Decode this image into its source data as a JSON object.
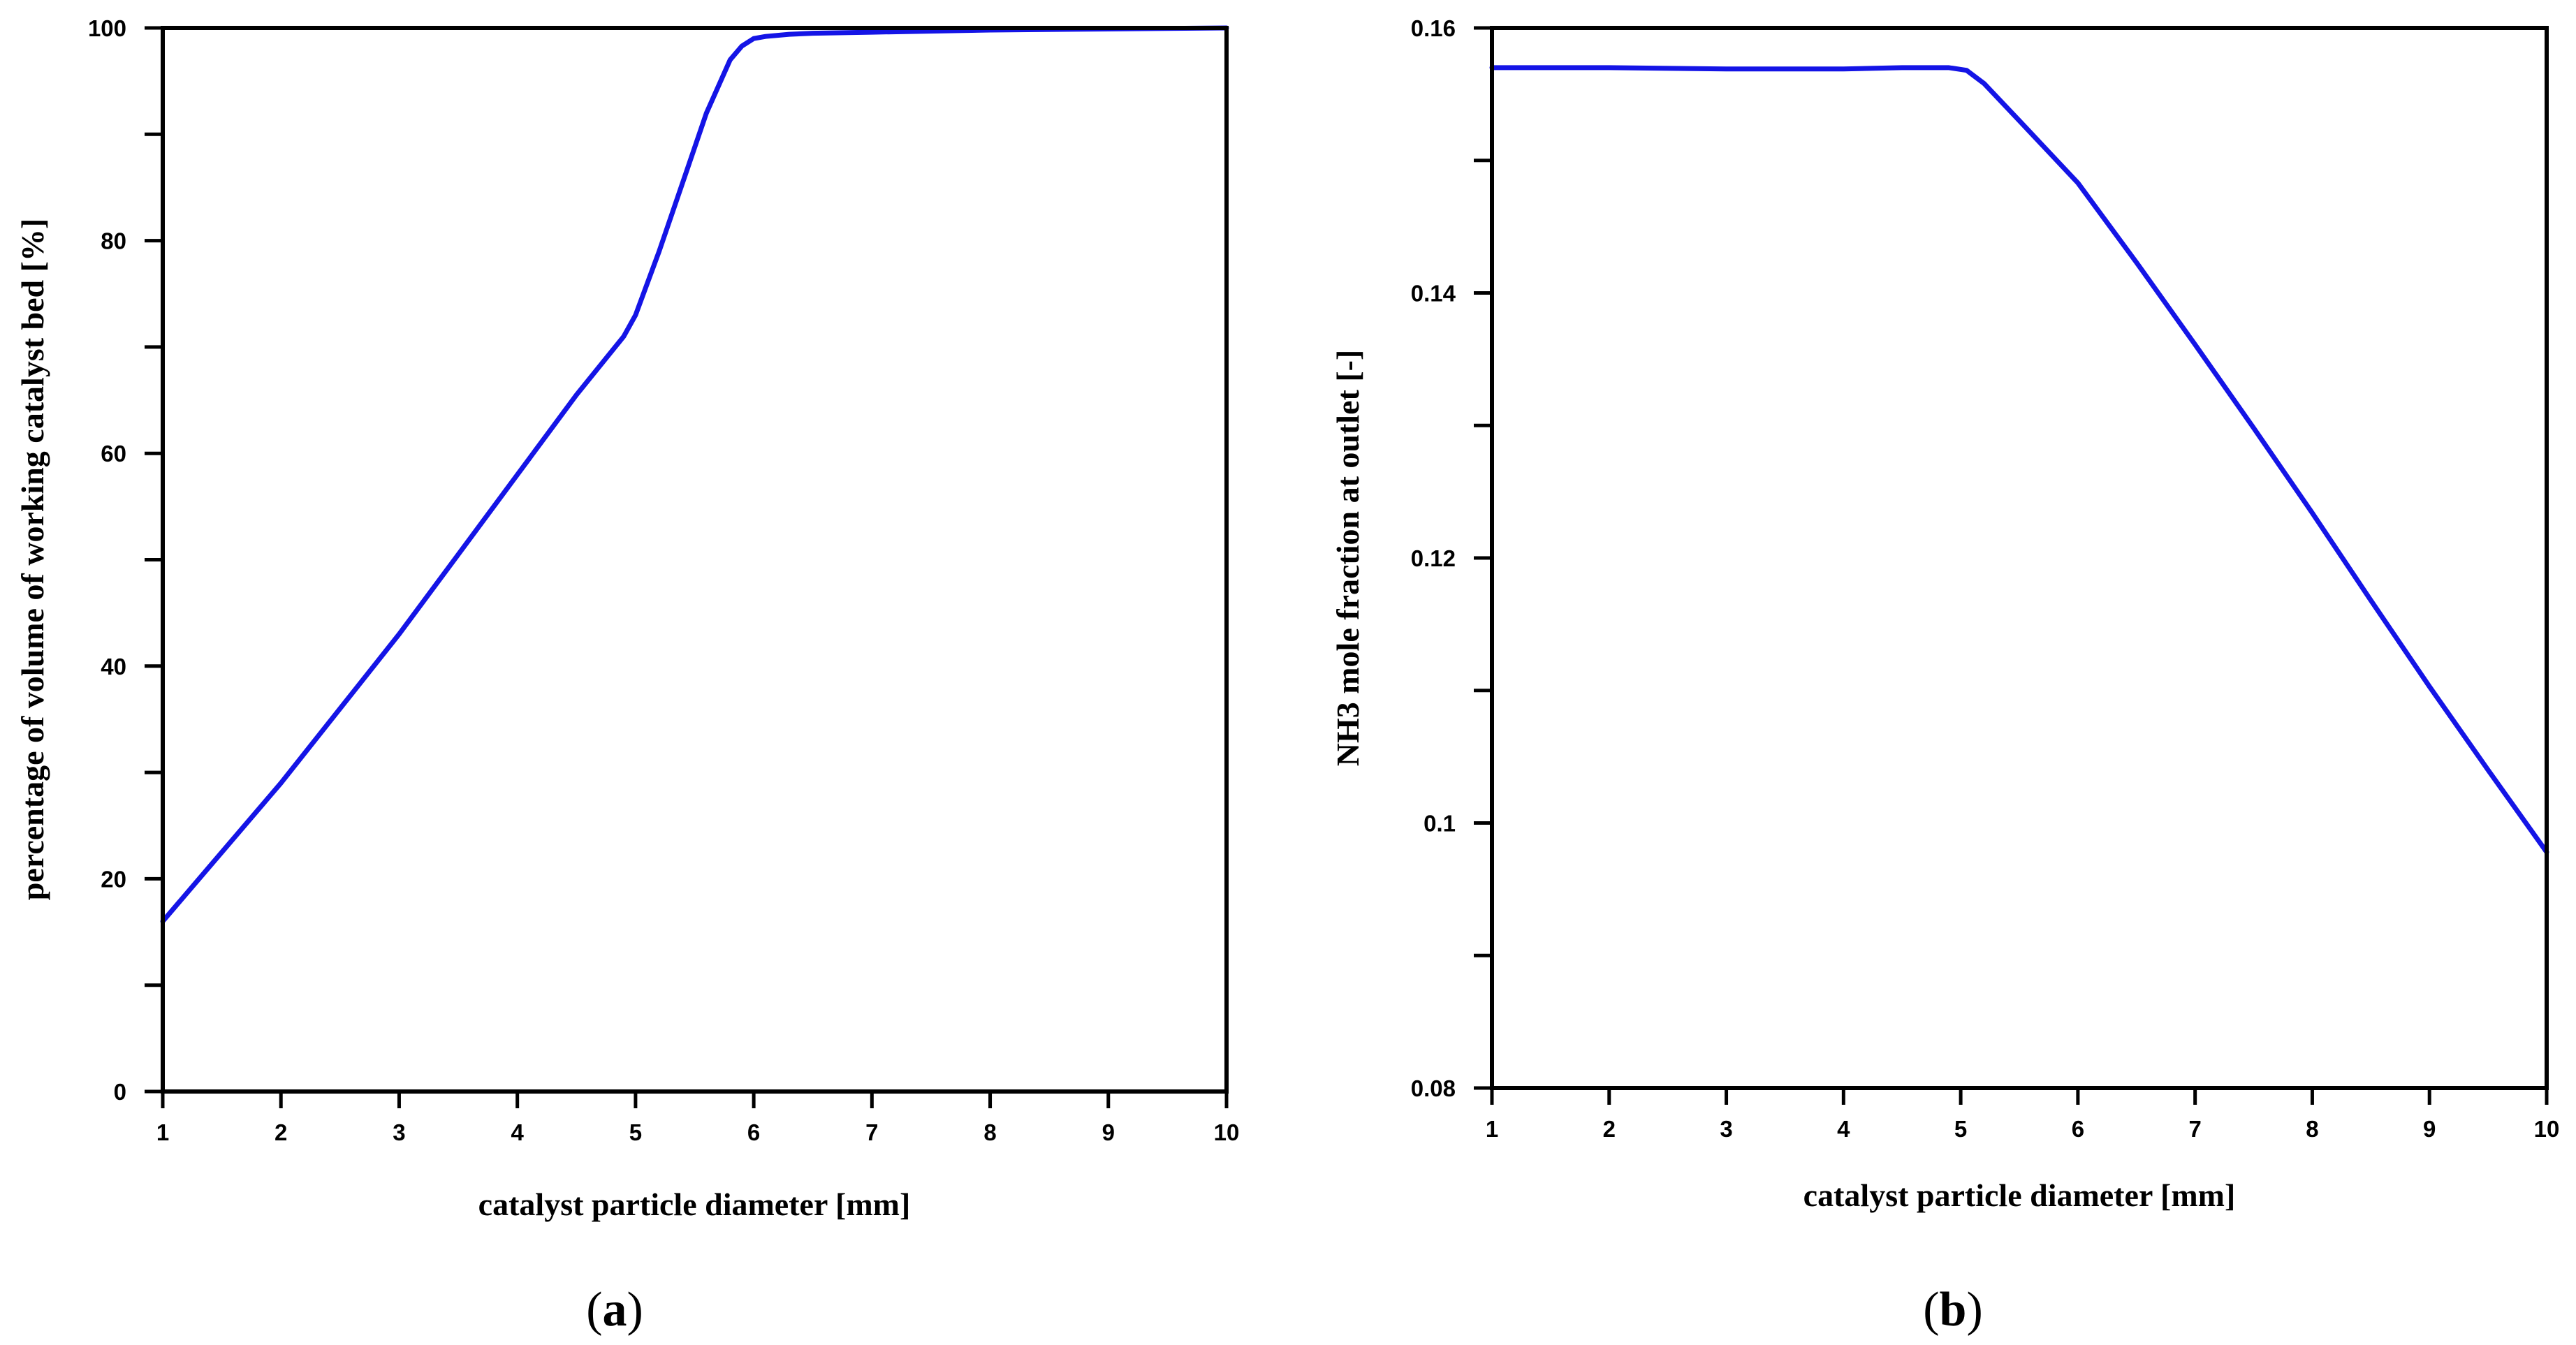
{
  "colors": {
    "series": "#1414e6",
    "axis": "#000000"
  },
  "chart_data": [
    {
      "type": "line",
      "panel": "a",
      "panel_label": "a",
      "xlabel": "catalyst particle diameter [mm]",
      "ylabel": "percentage of volume of working catalyst bed  [%]",
      "xlim": [
        1,
        10
      ],
      "ylim": [
        0,
        100
      ],
      "x_ticks": [
        1,
        2,
        3,
        4,
        5,
        6,
        7,
        8,
        9,
        10
      ],
      "y_ticks": [
        0,
        20,
        40,
        60,
        80,
        100
      ],
      "y_tick_labels": [
        "0",
        "20",
        "40",
        "60",
        "80",
        "100"
      ],
      "y_minor_step": 10,
      "grid": false,
      "series": [
        {
          "x": [
            1,
            1.5,
            2,
            2.5,
            3,
            3.5,
            4,
            4.5,
            4.9,
            5,
            5.2,
            5.4,
            5.6,
            5.8,
            5.9,
            6,
            6.1,
            6.3,
            6.5,
            7,
            8,
            9,
            10
          ],
          "y": [
            16,
            22.5,
            29,
            36,
            43,
            50.5,
            58,
            65.5,
            71,
            73,
            79,
            85.5,
            92,
            97,
            98.3,
            99,
            99.2,
            99.4,
            99.5,
            99.6,
            99.8,
            99.9,
            100
          ]
        }
      ]
    },
    {
      "type": "line",
      "panel": "b",
      "panel_label": "b",
      "xlabel": "catalyst particle diameter [mm]",
      "ylabel": "NH3 mole fraction at outlet [-]",
      "xlim": [
        1,
        10
      ],
      "ylim": [
        0.08,
        0.16
      ],
      "x_ticks": [
        1,
        2,
        3,
        4,
        5,
        6,
        7,
        8,
        9,
        10
      ],
      "y_ticks": [
        0.08,
        0.1,
        0.12,
        0.14,
        0.16
      ],
      "y_tick_labels": [
        "0.08",
        "0.1",
        "0.12",
        "0.14",
        "0.16"
      ],
      "y_minor_step": 0.01,
      "grid": false,
      "series": [
        {
          "x": [
            1,
            2,
            3,
            4,
            4.5,
            4.9,
            5.05,
            5.2,
            5.5,
            6,
            6.5,
            7,
            7.5,
            8,
            8.5,
            9,
            9.5,
            10
          ],
          "y": [
            0.157,
            0.157,
            0.1569,
            0.1569,
            0.157,
            0.157,
            0.1568,
            0.1558,
            0.153,
            0.1483,
            0.1423,
            0.1361,
            0.1298,
            0.1234,
            0.1168,
            0.1103,
            0.104,
            0.0978
          ]
        }
      ]
    }
  ]
}
